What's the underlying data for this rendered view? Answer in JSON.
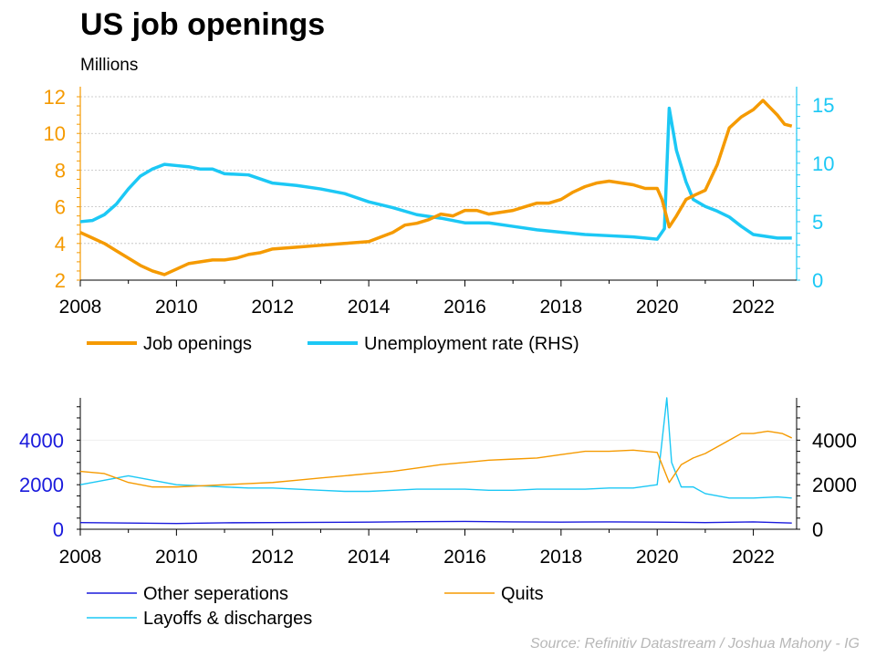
{
  "title": "US job openings",
  "subtitle": "Millions",
  "source": "Source: Refinitiv Datastream / Joshua Mahony - IG",
  "colors": {
    "job_openings": "#f59a00",
    "unemployment": "#1cc8f5",
    "other_separations": "#1a1adc",
    "quits": "#f59a00",
    "layoffs": "#1cc8f5"
  },
  "chart_data": [
    {
      "type": "line",
      "x_ticks": [
        "2008",
        "2010",
        "2012",
        "2014",
        "2016",
        "2018",
        "2020",
        "2022"
      ],
      "xlim": [
        2008,
        2022.9
      ],
      "y_left_ticks": [
        "2",
        "4",
        "6",
        "8",
        "10",
        "12"
      ],
      "ylim_left": [
        2,
        12.2
      ],
      "y_right_ticks": [
        "0",
        "5",
        "10",
        "15"
      ],
      "ylim_right": [
        0,
        16
      ],
      "grid": true,
      "legend_position": "bottom",
      "series": [
        {
          "name": "Job openings",
          "axis": "left",
          "points": [
            [
              2008,
              4.6
            ],
            [
              2008.25,
              4.3
            ],
            [
              2008.5,
              4.0
            ],
            [
              2008.75,
              3.6
            ],
            [
              2009,
              3.2
            ],
            [
              2009.25,
              2.8
            ],
            [
              2009.5,
              2.5
            ],
            [
              2009.75,
              2.3
            ],
            [
              2010,
              2.6
            ],
            [
              2010.25,
              2.9
            ],
            [
              2010.5,
              3.0
            ],
            [
              2010.75,
              3.1
            ],
            [
              2011,
              3.1
            ],
            [
              2011.25,
              3.2
            ],
            [
              2011.5,
              3.4
            ],
            [
              2011.75,
              3.5
            ],
            [
              2012,
              3.7
            ],
            [
              2012.5,
              3.8
            ],
            [
              2013,
              3.9
            ],
            [
              2013.5,
              4.0
            ],
            [
              2014,
              4.1
            ],
            [
              2014.5,
              4.6
            ],
            [
              2014.75,
              5.0
            ],
            [
              2015,
              5.1
            ],
            [
              2015.25,
              5.3
            ],
            [
              2015.5,
              5.6
            ],
            [
              2015.75,
              5.5
            ],
            [
              2016,
              5.8
            ],
            [
              2016.25,
              5.8
            ],
            [
              2016.5,
              5.6
            ],
            [
              2016.75,
              5.7
            ],
            [
              2017,
              5.8
            ],
            [
              2017.25,
              6.0
            ],
            [
              2017.5,
              6.2
            ],
            [
              2017.75,
              6.2
            ],
            [
              2018,
              6.4
            ],
            [
              2018.25,
              6.8
            ],
            [
              2018.5,
              7.1
            ],
            [
              2018.75,
              7.3
            ],
            [
              2019,
              7.4
            ],
            [
              2019.25,
              7.3
            ],
            [
              2019.5,
              7.2
            ],
            [
              2019.75,
              7.0
            ],
            [
              2020,
              7.0
            ],
            [
              2020.1,
              6.4
            ],
            [
              2020.25,
              4.9
            ],
            [
              2020.4,
              5.5
            ],
            [
              2020.6,
              6.4
            ],
            [
              2020.75,
              6.6
            ],
            [
              2021,
              6.9
            ],
            [
              2021.25,
              8.3
            ],
            [
              2021.5,
              10.3
            ],
            [
              2021.75,
              10.9
            ],
            [
              2022,
              11.3
            ],
            [
              2022.2,
              11.8
            ],
            [
              2022.35,
              11.4
            ],
            [
              2022.5,
              11.0
            ],
            [
              2022.65,
              10.5
            ],
            [
              2022.8,
              10.4
            ]
          ]
        },
        {
          "name": "Unemployment rate (RHS)",
          "axis": "right",
          "points": [
            [
              2008,
              5.0
            ],
            [
              2008.25,
              5.1
            ],
            [
              2008.5,
              5.6
            ],
            [
              2008.75,
              6.5
            ],
            [
              2009,
              7.8
            ],
            [
              2009.25,
              8.9
            ],
            [
              2009.5,
              9.5
            ],
            [
              2009.75,
              9.9
            ],
            [
              2010,
              9.8
            ],
            [
              2010.25,
              9.7
            ],
            [
              2010.5,
              9.5
            ],
            [
              2010.75,
              9.5
            ],
            [
              2011,
              9.1
            ],
            [
              2011.5,
              9.0
            ],
            [
              2012,
              8.3
            ],
            [
              2012.5,
              8.1
            ],
            [
              2013,
              7.8
            ],
            [
              2013.5,
              7.4
            ],
            [
              2014,
              6.7
            ],
            [
              2014.5,
              6.2
            ],
            [
              2015,
              5.6
            ],
            [
              2015.5,
              5.3
            ],
            [
              2016,
              4.9
            ],
            [
              2016.5,
              4.9
            ],
            [
              2017,
              4.6
            ],
            [
              2017.5,
              4.3
            ],
            [
              2018,
              4.1
            ],
            [
              2018.5,
              3.9
            ],
            [
              2019,
              3.8
            ],
            [
              2019.5,
              3.7
            ],
            [
              2020,
              3.5
            ],
            [
              2020.15,
              4.4
            ],
            [
              2020.25,
              14.7
            ],
            [
              2020.4,
              11.1
            ],
            [
              2020.6,
              8.4
            ],
            [
              2020.75,
              6.9
            ],
            [
              2021,
              6.3
            ],
            [
              2021.25,
              5.9
            ],
            [
              2021.5,
              5.4
            ],
            [
              2021.75,
              4.6
            ],
            [
              2022,
              3.9
            ],
            [
              2022.5,
              3.6
            ],
            [
              2022.8,
              3.6
            ]
          ]
        }
      ]
    },
    {
      "type": "line",
      "x_ticks": [
        "2008",
        "2010",
        "2012",
        "2014",
        "2016",
        "2018",
        "2020",
        "2022"
      ],
      "xlim": [
        2008,
        2022.9
      ],
      "y_left_ticks": [
        "0",
        "2000",
        "4000"
      ],
      "y_right_ticks": [
        "0",
        "2000",
        "4000"
      ],
      "ylim": [
        0,
        5900
      ],
      "legend_position": "bottom",
      "series": [
        {
          "name": "Other seperations",
          "axis": "left",
          "points": [
            [
              2008,
              300
            ],
            [
              2009,
              280
            ],
            [
              2010,
              260
            ],
            [
              2011,
              290
            ],
            [
              2012,
              300
            ],
            [
              2013,
              310
            ],
            [
              2014,
              320
            ],
            [
              2015,
              340
            ],
            [
              2016,
              350
            ],
            [
              2017,
              330
            ],
            [
              2018,
              320
            ],
            [
              2019,
              330
            ],
            [
              2020,
              320
            ],
            [
              2021,
              300
            ],
            [
              2022,
              330
            ],
            [
              2022.8,
              280
            ]
          ]
        },
        {
          "name": "Quits",
          "axis": "left",
          "points": [
            [
              2008,
              2600
            ],
            [
              2008.5,
              2500
            ],
            [
              2009,
              2100
            ],
            [
              2009.5,
              1900
            ],
            [
              2010,
              1900
            ],
            [
              2010.5,
              1950
            ],
            [
              2011,
              2000
            ],
            [
              2011.5,
              2050
            ],
            [
              2012,
              2100
            ],
            [
              2012.5,
              2200
            ],
            [
              2013,
              2300
            ],
            [
              2013.5,
              2400
            ],
            [
              2014,
              2500
            ],
            [
              2014.5,
              2600
            ],
            [
              2015,
              2750
            ],
            [
              2015.5,
              2900
            ],
            [
              2016,
              3000
            ],
            [
              2016.5,
              3100
            ],
            [
              2017,
              3150
            ],
            [
              2017.5,
              3200
            ],
            [
              2018,
              3350
            ],
            [
              2018.5,
              3500
            ],
            [
              2019,
              3500
            ],
            [
              2019.5,
              3550
            ],
            [
              2020,
              3450
            ],
            [
              2020.25,
              2100
            ],
            [
              2020.5,
              2900
            ],
            [
              2020.75,
              3200
            ],
            [
              2021,
              3400
            ],
            [
              2021.5,
              4000
            ],
            [
              2021.75,
              4300
            ],
            [
              2022,
              4300
            ],
            [
              2022.3,
              4400
            ],
            [
              2022.6,
              4300
            ],
            [
              2022.8,
              4100
            ]
          ]
        },
        {
          "name": "Layoffs & discharges",
          "axis": "left",
          "points": [
            [
              2008,
              2000
            ],
            [
              2008.5,
              2200
            ],
            [
              2009,
              2400
            ],
            [
              2009.5,
              2200
            ],
            [
              2010,
              2000
            ],
            [
              2010.5,
              1950
            ],
            [
              2011,
              1900
            ],
            [
              2011.5,
              1850
            ],
            [
              2012,
              1850
            ],
            [
              2012.5,
              1800
            ],
            [
              2013,
              1750
            ],
            [
              2013.5,
              1700
            ],
            [
              2014,
              1700
            ],
            [
              2014.5,
              1750
            ],
            [
              2015,
              1800
            ],
            [
              2015.5,
              1800
            ],
            [
              2016,
              1800
            ],
            [
              2016.5,
              1750
            ],
            [
              2017,
              1750
            ],
            [
              2017.5,
              1800
            ],
            [
              2018,
              1800
            ],
            [
              2018.5,
              1800
            ],
            [
              2019,
              1850
            ],
            [
              2019.5,
              1850
            ],
            [
              2020,
              2000
            ],
            [
              2020.2,
              5900
            ],
            [
              2020.3,
              3000
            ],
            [
              2020.5,
              1900
            ],
            [
              2020.75,
              1900
            ],
            [
              2021,
              1600
            ],
            [
              2021.5,
              1400
            ],
            [
              2022,
              1400
            ],
            [
              2022.5,
              1450
            ],
            [
              2022.8,
              1400
            ]
          ]
        }
      ]
    }
  ]
}
